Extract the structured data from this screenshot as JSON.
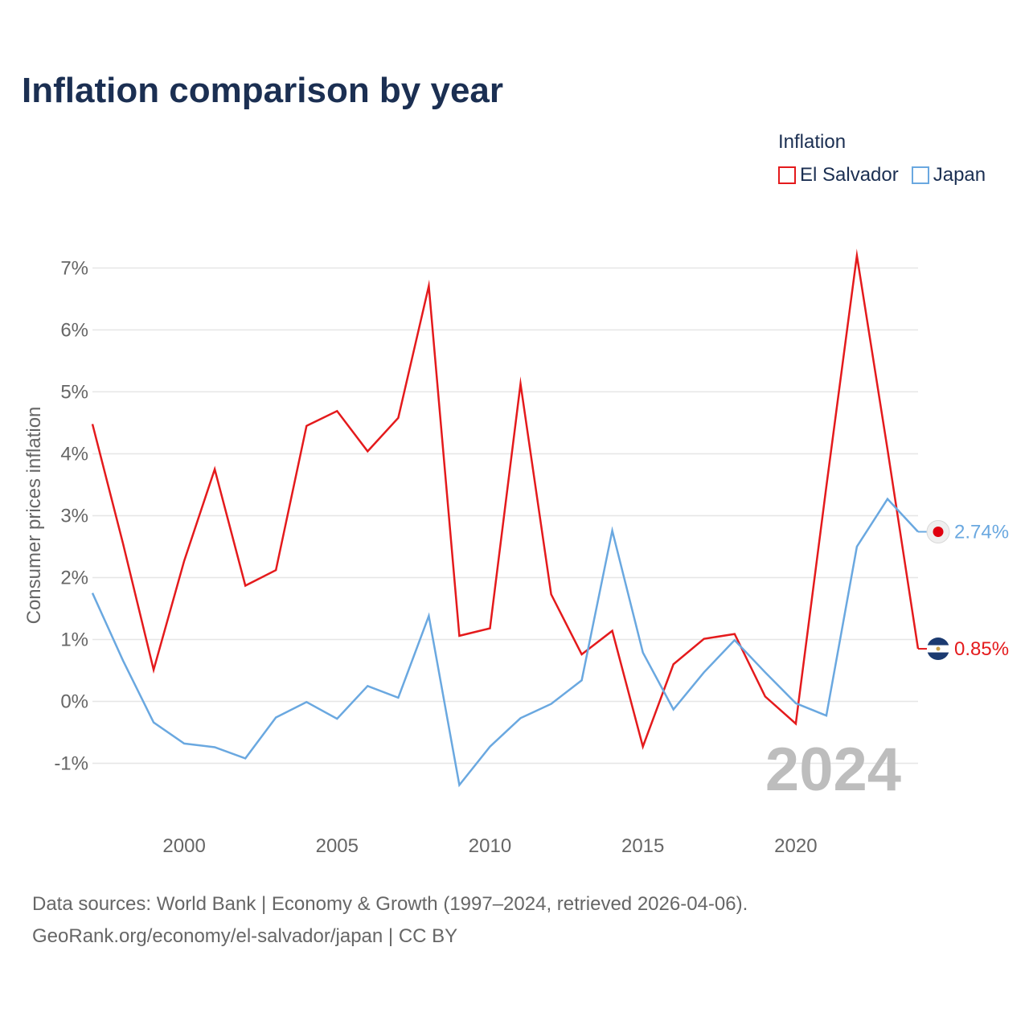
{
  "title": "Inflation comparison by year",
  "legend": {
    "title": "Inflation",
    "items": [
      {
        "label": "El Salvador",
        "color": "#e41a1c"
      },
      {
        "label": "Japan",
        "color": "#6aa8e0"
      }
    ]
  },
  "source": {
    "line1": "Data sources: World Bank | Economy & Growth (1997–2024, retrieved 2026-04-06).",
    "line2": "GeoRank.org/economy/el-salvador/japan | CC BY"
  },
  "chart_data": {
    "type": "line",
    "title": "Inflation comparison by year",
    "xlabel": "",
    "ylabel": "Consumer prices inflation",
    "x": [
      1997,
      1998,
      1999,
      2000,
      2001,
      2002,
      2003,
      2004,
      2005,
      2006,
      2007,
      2008,
      2009,
      2010,
      2011,
      2012,
      2013,
      2014,
      2015,
      2016,
      2017,
      2018,
      2019,
      2020,
      2021,
      2022,
      2023,
      2024
    ],
    "xlim": [
      1997,
      2024
    ],
    "ylim": [
      -1.85,
      7.2
    ],
    "xticks": [
      2000,
      2005,
      2010,
      2015,
      2020
    ],
    "yticks": [
      -1,
      0,
      1,
      2,
      3,
      4,
      5,
      6,
      7
    ],
    "ytick_labels": [
      "-1%",
      "0%",
      "1%",
      "2%",
      "3%",
      "4%",
      "5%",
      "6%",
      "7%"
    ],
    "grid": true,
    "year_watermark": "2024",
    "series": [
      {
        "name": "El Salvador",
        "color": "#e41a1c",
        "end_label": "0.85%",
        "values": [
          4.48,
          2.55,
          0.51,
          2.27,
          3.75,
          1.87,
          2.12,
          4.45,
          4.69,
          4.04,
          4.58,
          6.71,
          1.06,
          1.18,
          5.13,
          1.73,
          0.76,
          1.14,
          -0.73,
          0.6,
          1.01,
          1.09,
          0.08,
          -0.36,
          3.47,
          7.2,
          4.07,
          0.85
        ]
      },
      {
        "name": "Japan",
        "color": "#6aa8e0",
        "end_label": "2.74%",
        "values": [
          1.75,
          0.66,
          -0.34,
          -0.68,
          -0.74,
          -0.92,
          -0.26,
          -0.01,
          -0.28,
          0.25,
          0.06,
          1.38,
          -1.35,
          -0.73,
          -0.27,
          -0.04,
          0.34,
          2.76,
          0.79,
          -0.13,
          0.47,
          0.99,
          0.47,
          -0.03,
          -0.23,
          2.5,
          3.27,
          2.74
        ]
      }
    ]
  }
}
